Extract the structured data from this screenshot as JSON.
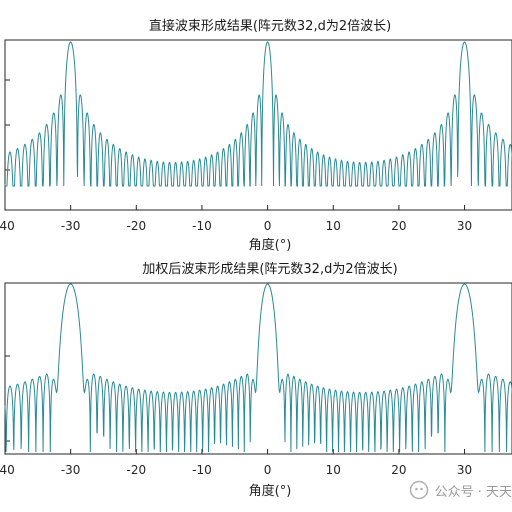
{
  "chart_data": [
    {
      "type": "line",
      "title": "直接波束形成结果(阵元数32,d为2倍波长)",
      "xlabel": "角度(°)",
      "ylabel": "",
      "xlim": [
        -40,
        40
      ],
      "xticks": [
        -40,
        -30,
        -20,
        -10,
        0,
        10,
        20,
        30
      ],
      "yticks_shown": false,
      "grid": false,
      "series": [
        {
          "color": "#2a8a96",
          "description_points": {
            "x": [
              -40,
              -33,
              -31.5,
              -30,
              -28.5,
              -27,
              -20,
              -10,
              -2,
              -1,
              0,
              1,
              2,
              10,
              20,
              27,
              28.5,
              30,
              31.5,
              33,
              38
            ],
            "y": [
              -18,
              -14,
              -7,
              0,
              -7,
              -14,
              -16,
              -18,
              -12,
              -6,
              0,
              -6,
              -12,
              -18,
              -16,
              -14,
              -7,
              0,
              -7,
              -14,
              -18
            ]
          }
        }
      ],
      "source_line_color": "#2a8a96"
    },
    {
      "type": "line",
      "title": "加权后波束形成结果(阵元数32,d为2倍波长)",
      "xlabel": "角度(°)",
      "ylabel": "",
      "xlim": [
        -40,
        40
      ],
      "xticks": [
        -40,
        -30,
        -20,
        -10,
        0,
        10,
        20,
        30
      ],
      "yticks_shown": false,
      "grid": false,
      "series": [
        {
          "color": "#2a8a96",
          "description_points": {
            "x": [
              -40,
              -34,
              -32,
              -30,
              -28,
              -26,
              -25,
              -20,
              -11,
              -10,
              -3,
              -1,
              0,
              1,
              3,
              10,
              20,
              25,
              26,
              28,
              30,
              32,
              34,
              38
            ],
            "y": [
              -30,
              -26,
              -8,
              0,
              -8,
              -26,
              -70,
              -28,
              -30,
              -70,
              -26,
              -8,
              0,
              -8,
              -26,
              -28,
              -28,
              -70,
              -26,
              -8,
              0,
              -8,
              -26,
              -30
            ]
          }
        }
      ]
    }
  ],
  "watermark": {
    "text": "公众号 · 天天",
    "icon": "wechat-official-account-icon"
  }
}
